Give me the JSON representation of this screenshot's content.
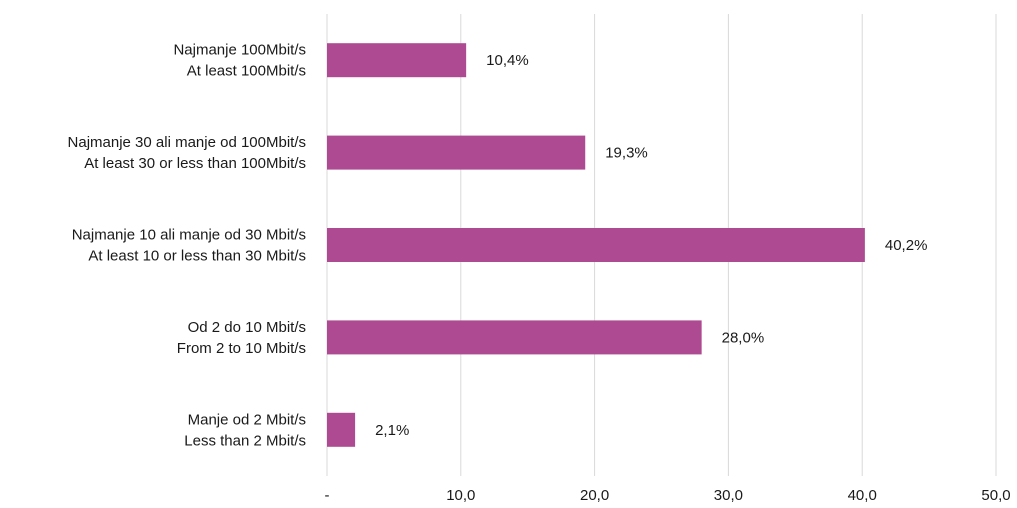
{
  "chart_data": {
    "type": "bar",
    "orientation": "horizontal",
    "categories": [
      [
        "Najmanje 100Mbit/s",
        "At least 100Mbit/s"
      ],
      [
        "Najmanje 30 ali manje od 100Mbit/s",
        "At least 30 or less than 100Mbit/s"
      ],
      [
        "Najmanje 10 ali manje od 30 Mbit/s",
        "At least 10 or less than 30 Mbit/s"
      ],
      [
        "Od 2 do 10 Mbit/s",
        "From 2 to 10 Mbit/s"
      ],
      [
        "Manje od 2 Mbit/s",
        "Less than 2 Mbit/s"
      ]
    ],
    "values": [
      10.4,
      19.3,
      40.2,
      28.0,
      2.1
    ],
    "data_labels": [
      "10,4%",
      "19,3%",
      "40,2%",
      "28,0%",
      "2,1%"
    ],
    "xlim": [
      0,
      50
    ],
    "x_ticks": [
      0,
      10,
      20,
      30,
      40,
      50
    ],
    "x_tick_labels": [
      "-",
      "10,0",
      "20,0",
      "30,0",
      "40,0",
      "50,0"
    ],
    "grid": "vertical",
    "bar_color": "#AD4A92",
    "grid_color": "#D9D9D9"
  }
}
